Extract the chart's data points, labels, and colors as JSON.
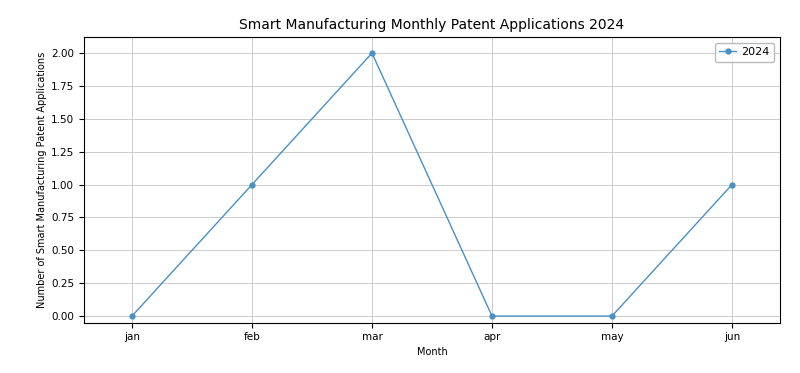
{
  "title": "Smart Manufacturing Monthly Patent Applications 2024",
  "xlabel": "Month",
  "ylabel": "Number of Smart Manufacturing Patent Applications",
  "months": [
    "jan",
    "feb",
    "mar",
    "apr",
    "may",
    "jun"
  ],
  "values_2024": [
    0,
    1,
    2,
    0,
    0,
    1
  ],
  "legend_label": "2024",
  "line_color": "#4a90c4",
  "marker": "o",
  "ylim": [
    -0.05,
    2.12
  ],
  "yticks": [
    0.0,
    0.25,
    0.5,
    0.75,
    1.0,
    1.25,
    1.5,
    1.75,
    2.0
  ],
  "background_color": "#ffffff",
  "grid_color": "#cccccc",
  "title_fontsize": 10,
  "label_fontsize": 7,
  "tick_fontsize": 7.5,
  "legend_fontsize": 8
}
